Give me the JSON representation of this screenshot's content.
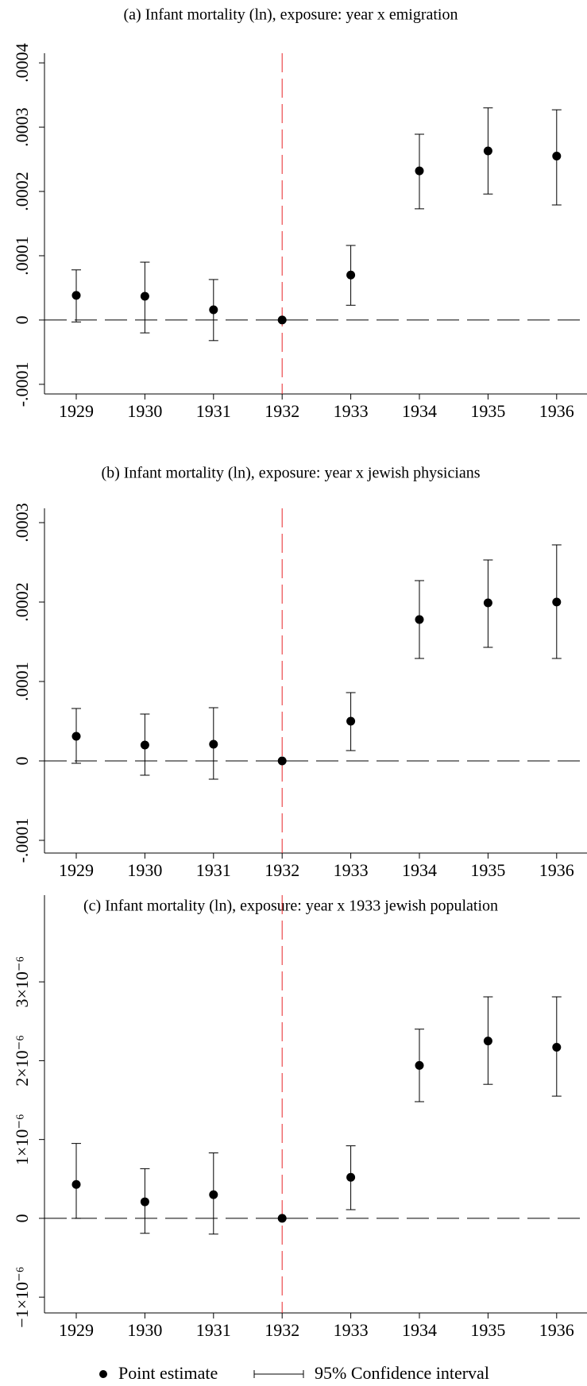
{
  "chart_data": [
    {
      "type": "errorbar",
      "title": "(a) Infant mortality (ln), exposure: year x emigration",
      "categories": [
        "1929",
        "1930",
        "1931",
        "1932",
        "1933",
        "1934",
        "1935",
        "1936"
      ],
      "series": [
        {
          "name": "Point estimate",
          "color": "#000000",
          "values": [
            3.84e-05,
            3.7e-05,
            1.6e-05,
            0,
            7e-05,
            0.000232,
            0.000263,
            0.000255
          ],
          "ci_name": "95% Confidence interval",
          "ci_low": [
            -3e-06,
            -2e-05,
            -3.2e-05,
            null,
            2.3e-05,
            0.000173,
            0.000196,
            0.000179
          ],
          "ci_high": [
            7.8e-05,
            9e-05,
            6.3e-05,
            null,
            0.000116,
            0.000289,
            0.00033,
            0.000327
          ]
        }
      ],
      "ylim": [
        -0.000115,
        0.000415
      ],
      "yticks": [
        {
          "value": -0.0001,
          "label": "-.0001"
        },
        {
          "value": 0,
          "label": "0"
        },
        {
          "value": 0.0001,
          "label": ".0001"
        },
        {
          "value": 0.0002,
          "label": ".0002"
        },
        {
          "value": 0.0003,
          "label": ".0003"
        },
        {
          "value": 0.0004,
          "label": ".0004"
        }
      ],
      "hline": 0,
      "reference_category": "1932",
      "reference_color": "#e8262a"
    },
    {
      "type": "errorbar",
      "title": "(b) Infant mortality (ln), exposure: year x jewish physicians",
      "categories": [
        "1929",
        "1930",
        "1931",
        "1932",
        "1933",
        "1934",
        "1935",
        "1936"
      ],
      "series": [
        {
          "name": "Point estimate",
          "color": "#000000",
          "values": [
            3.1e-05,
            2e-05,
            2.1e-05,
            0,
            5e-05,
            0.000178,
            0.000199,
            0.0002
          ],
          "ci_name": "95% Confidence interval",
          "ci_low": [
            -3e-06,
            -1.8e-05,
            -2.3e-05,
            null,
            1.3e-05,
            0.000129,
            0.000143,
            0.000129
          ],
          "ci_high": [
            6.6e-05,
            5.9e-05,
            6.7e-05,
            null,
            8.6e-05,
            0.000227,
            0.000253,
            0.000272
          ]
        }
      ],
      "ylim": [
        -0.000116,
        0.000318
      ],
      "yticks": [
        {
          "value": -0.0001,
          "label": "-.0001"
        },
        {
          "value": 0,
          "label": "0"
        },
        {
          "value": 0.0001,
          "label": ".0001"
        },
        {
          "value": 0.0002,
          "label": ".0002"
        },
        {
          "value": 0.0003,
          "label": ".0003"
        }
      ],
      "hline": 0,
      "reference_category": "1932",
      "reference_color": "#e8262a"
    },
    {
      "type": "errorbar",
      "title": "(c) Infant mortality (ln), exposure: year x 1933 jewish population",
      "categories": [
        "1929",
        "1930",
        "1931",
        "1932",
        "1933",
        "1934",
        "1935",
        "1936"
      ],
      "series": [
        {
          "name": "Point estimate",
          "color": "#000000",
          "values": [
            4.3e-07,
            2.1e-07,
            3e-07,
            0,
            5.2e-07,
            1.94e-06,
            2.25e-06,
            2.17e-06
          ],
          "ci_name": "95% Confidence interval",
          "ci_low": [
            0,
            -1.9e-07,
            -2e-07,
            null,
            1.1e-07,
            1.48e-06,
            1.7e-06,
            1.55e-06
          ],
          "ci_high": [
            9.5e-07,
            6.3e-07,
            8.3e-07,
            null,
            9.2e-07,
            2.4e-06,
            2.81e-06,
            2.81e-06
          ]
        }
      ],
      "ylim": [
        -1.2e-06,
        4.1e-06
      ],
      "yticks": [
        {
          "value": -1e-06,
          "label": "−1×10⁻⁶"
        },
        {
          "value": 0,
          "label": "0"
        },
        {
          "value": 1e-06,
          "label": "1×10⁻⁶"
        },
        {
          "value": 2e-06,
          "label": "2×10⁻⁶"
        },
        {
          "value": 3e-06,
          "label": "3×10⁻⁶"
        }
      ],
      "hline": 0,
      "reference_category": "1932",
      "reference_color": "#e8262a"
    }
  ]
}
